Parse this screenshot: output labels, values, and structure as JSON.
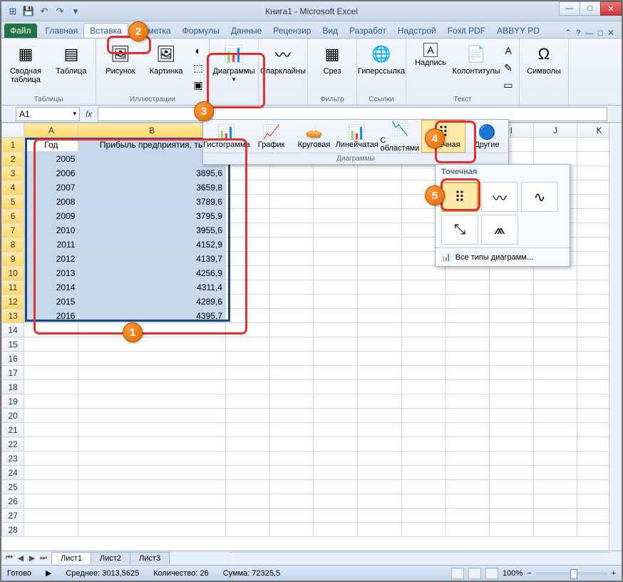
{
  "window": {
    "title": "Книга1 - Microsoft Excel"
  },
  "qat": {
    "save": "💾",
    "undo": "↶",
    "redo": "↷"
  },
  "tabs": {
    "file": "Файл",
    "items": [
      "Главная",
      "Вставка",
      "Разметка",
      "Формулы",
      "Данные",
      "Рецензир",
      "Вид",
      "Разработ",
      "Надстрой",
      "Foxit PDF",
      "ABBYY PD"
    ],
    "active_index": 1
  },
  "ribbon": {
    "tables": {
      "label": "Таблицы",
      "pivot": "Сводная\nтаблица",
      "table": "Таблица"
    },
    "illus": {
      "label": "Иллюстрации",
      "pic": "Рисунок",
      "clip": "Картинка"
    },
    "charts": {
      "label": "",
      "btn": "Диаграммы"
    },
    "spark": {
      "btn": "Спарклайны"
    },
    "filter": {
      "label": "Фильтр",
      "btn": "Срез"
    },
    "links": {
      "label": "Ссылки",
      "btn": "Гиперссылка"
    },
    "text": {
      "label": "Текст",
      "tb": "Надпись",
      "hf": "Колонтитулы"
    },
    "symbols": {
      "label": "",
      "btn": "Символы"
    }
  },
  "namebox": "A1",
  "chart_panel": {
    "label": "Диаграммы",
    "types": [
      "Гистограмма",
      "График",
      "Круговая",
      "Линейчатая",
      "С\nобластями",
      "Точечная",
      "Другие"
    ],
    "icons": [
      "📊",
      "📈",
      "🥧",
      "📊",
      "📉",
      "⠿",
      "🔵"
    ]
  },
  "scatter_panel": {
    "header": "Точечная",
    "all": "Все типы диаграмм..."
  },
  "table": {
    "headers": [
      "Год",
      "Прибыль предприятия, ты"
    ],
    "rows": [
      [
        "2005",
        ""
      ],
      [
        "2006",
        "3895,6"
      ],
      [
        "2007",
        "3659,8"
      ],
      [
        "2008",
        "3789,6"
      ],
      [
        "2009",
        "3795,9"
      ],
      [
        "2010",
        "3955,6"
      ],
      [
        "2011",
        "4152,9"
      ],
      [
        "2012",
        "4139,7"
      ],
      [
        "2013",
        "4256,9"
      ],
      [
        "2014",
        "4311,4"
      ],
      [
        "2015",
        "4289,6"
      ],
      [
        "2016",
        "4395,7"
      ]
    ]
  },
  "sheets": [
    "Лист1",
    "Лист2",
    "Лист3"
  ],
  "status": {
    "ready": "Готово",
    "avg_label": "Среднее:",
    "avg": "3013,5625",
    "cnt_label": "Количество:",
    "cnt": "26",
    "sum_label": "Сумма:",
    "sum": "72325,5",
    "zoom": "100%"
  },
  "callouts": {
    "c1": "1",
    "c2": "2",
    "c3": "3",
    "c4": "4",
    "c5": "5"
  }
}
